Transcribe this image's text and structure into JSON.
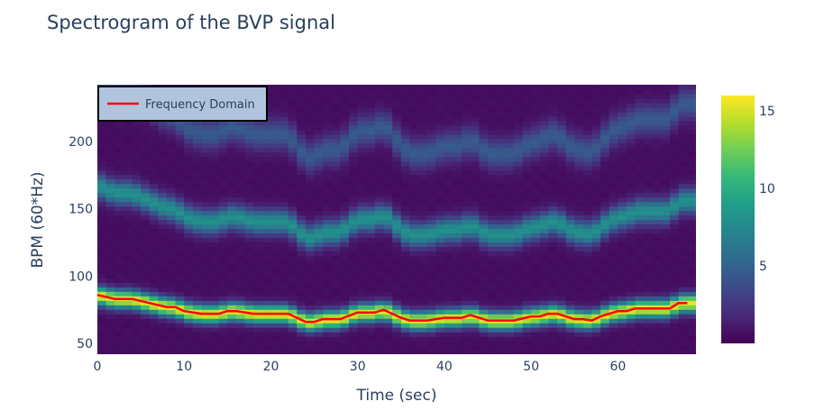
{
  "chart_data": {
    "type": "heatmap",
    "title": "Spectrogram of the BVP signal",
    "xlabel": "Time (sec)",
    "ylabel": "BPM (60*Hz)",
    "xlim": [
      0,
      69
    ],
    "ylim": [
      42,
      242
    ],
    "x_ticks": [
      0,
      10,
      20,
      30,
      40,
      50,
      60
    ],
    "y_ticks": [
      50,
      100,
      150,
      200
    ],
    "colorscale": "Viridis",
    "colorbar": {
      "range": [
        0,
        16
      ],
      "ticks": [
        5,
        10,
        15
      ]
    },
    "spectrogram": {
      "time_range": [
        0,
        69
      ],
      "bpm_range": [
        42,
        242
      ],
      "n_time_bins": 69,
      "n_bpm_bins": 60,
      "max_value": 15,
      "note": "Bright band follows the Frequency Domain trace; weaker bands near 2x and 3x the heart rate"
    },
    "series": [
      {
        "name": "Frequency Domain",
        "color": "#ff0000",
        "type": "line",
        "x": [
          0,
          2,
          4,
          6,
          8,
          9,
          10,
          12,
          13,
          14,
          15,
          16,
          18,
          20,
          22,
          24,
          25,
          26,
          27,
          28,
          30,
          32,
          33,
          34,
          35,
          36,
          37,
          38,
          40,
          42,
          43,
          44,
          45,
          46,
          48,
          50,
          51,
          52,
          53,
          54,
          55,
          56,
          57,
          58,
          60,
          61,
          62,
          63,
          64,
          66,
          67,
          68
        ],
        "y": [
          86,
          83,
          83,
          80,
          77,
          77,
          74,
          72,
          72,
          72,
          74,
          74,
          72,
          72,
          72,
          66,
          66,
          68,
          68,
          68,
          73,
          73,
          75,
          72,
          69,
          67,
          67,
          67,
          69,
          69,
          71,
          69,
          67,
          67,
          67,
          70,
          70,
          72,
          72,
          70,
          68,
          68,
          67,
          70,
          74,
          74,
          76,
          76,
          76,
          76,
          80,
          80
        ]
      }
    ],
    "legend": {
      "position": "top-left",
      "label": "Frequency Domain"
    }
  }
}
